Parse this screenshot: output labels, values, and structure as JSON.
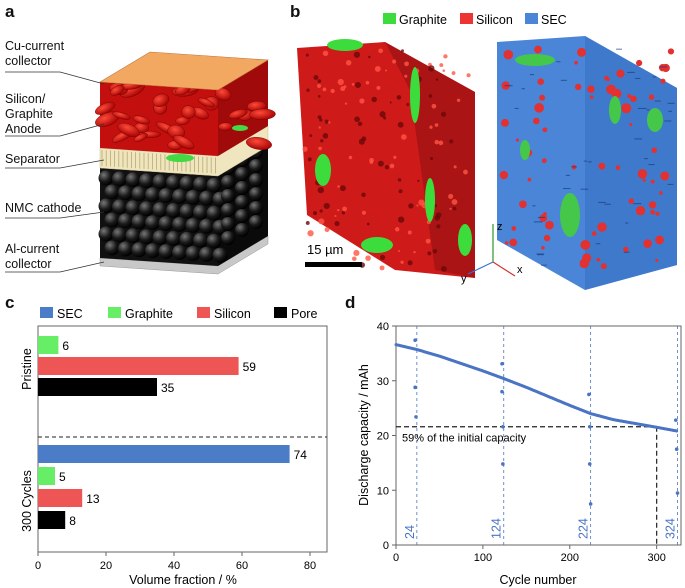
{
  "panels": {
    "a": {
      "letter": "a",
      "layers": [
        "Cu-current\ncollector",
        "Silicon/\nGraphite\nAnode",
        "Separator",
        "NMC cathode",
        "Al-current\ncollector"
      ]
    },
    "b": {
      "letter": "b",
      "legend": [
        {
          "label": "Graphite",
          "color": "#3ddc3d"
        },
        {
          "label": "Silicon",
          "color": "#ee3333"
        },
        {
          "label": "SEC",
          "color": "#4a85d8"
        }
      ],
      "scale_bar": "15 µm",
      "axes": {
        "z": "z",
        "y": "y",
        "x": "x"
      }
    },
    "c": {
      "letter": "c"
    },
    "d": {
      "letter": "d"
    }
  },
  "chart_data": [
    {
      "type": "bar",
      "orientation": "horizontal",
      "legend": [
        {
          "label": "SEC",
          "color": "#4a7cc7"
        },
        {
          "label": "Graphite",
          "color": "#66ee66"
        },
        {
          "label": "Silicon",
          "color": "#ee5555"
        },
        {
          "label": "Pore",
          "color": "#000000"
        }
      ],
      "groups": [
        {
          "name": "Pristine",
          "bars": [
            {
              "series": "Graphite",
              "value": 6,
              "label": "6"
            },
            {
              "series": "Silicon",
              "value": 59,
              "label": "59"
            },
            {
              "series": "Pore",
              "value": 35,
              "label": "35"
            }
          ]
        },
        {
          "name": "300 Cycles",
          "bars": [
            {
              "series": "SEC",
              "value": 74,
              "label": "74"
            },
            {
              "series": "Graphite",
              "value": 5,
              "label": "5"
            },
            {
              "series": "Silicon",
              "value": 13,
              "label": "13"
            },
            {
              "series": "Pore",
              "value": 8,
              "label": "8"
            }
          ]
        }
      ],
      "xlabel": "Volume fraction / %",
      "xlim": [
        0,
        85
      ],
      "xticks": [
        "0",
        "20",
        "40",
        "60",
        "80"
      ]
    },
    {
      "type": "line",
      "xlabel": "Cycle number",
      "ylabel": "Discharge capacity / mAh",
      "xlim": [
        0,
        328
      ],
      "ylim": [
        0,
        40
      ],
      "xticks": [
        "0",
        "100",
        "200",
        "300"
      ],
      "yticks": [
        "0",
        "10",
        "20",
        "30",
        "40"
      ],
      "series": [
        {
          "name": "capacity",
          "color": "#4a74c4",
          "x": [
            0,
            24,
            50,
            100,
            124,
            150,
            200,
            224,
            250,
            300,
            324
          ],
          "y": [
            36.6,
            35.7,
            34.5,
            31.8,
            30.4,
            28.8,
            25.5,
            24.0,
            22.9,
            21.5,
            20.8
          ]
        }
      ],
      "outliers": {
        "x": [
          22,
          22,
          23,
          122,
          122,
          123,
          123,
          222,
          223,
          223,
          224,
          322,
          323,
          324
        ],
        "y": [
          37.4,
          28.8,
          23.4,
          33.1,
          28.0,
          21.6,
          14.8,
          27.5,
          21.6,
          14.8,
          7.5,
          22.8,
          17.5,
          9.5
        ]
      },
      "cycle_markers": [
        {
          "x": 24,
          "label": "24"
        },
        {
          "x": 124,
          "label": "124"
        },
        {
          "x": 224,
          "label": "224"
        },
        {
          "x": 324,
          "label": "324"
        }
      ],
      "threshold": {
        "y": 21.6,
        "x_end": 300,
        "label": "59% of the initial capacity"
      }
    }
  ]
}
